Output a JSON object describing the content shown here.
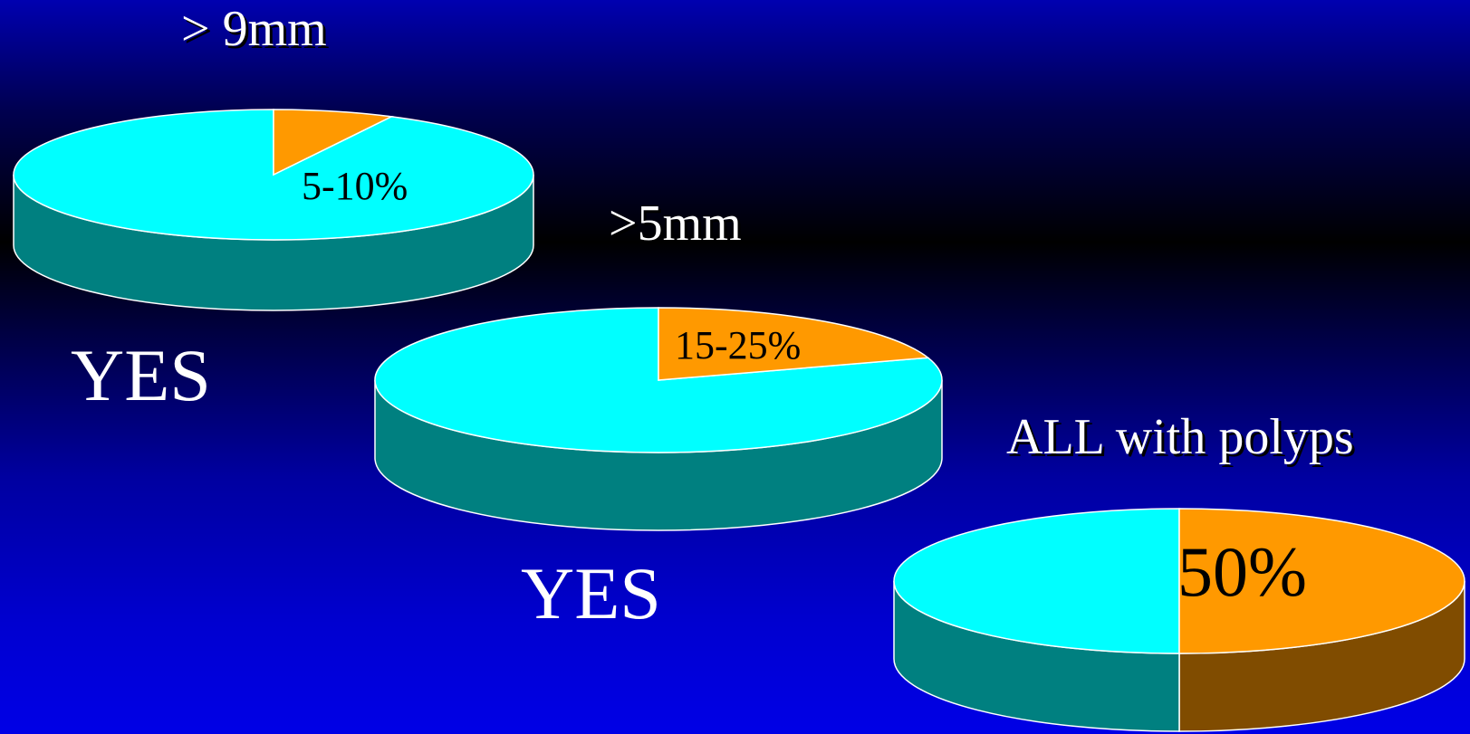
{
  "colors": {
    "background_top": "#0000b0",
    "background_bottom": "#0000e6",
    "slice_main": "#00ffff",
    "slice_main_side": "#008080",
    "slice_highlight": "#ff9900",
    "slice_highlight_side": "#804c00",
    "outline": "#ffffff",
    "text": "#ffffff"
  },
  "chart_data": [
    {
      "type": "pie",
      "title": "> 9mm",
      "slice_label": "5-10%",
      "values": [
        7.5,
        92.5
      ],
      "highlight_index": 0,
      "caption": "YES"
    },
    {
      "type": "pie",
      "title": ">5mm",
      "slice_label": "15-25%",
      "values": [
        20,
        80
      ],
      "highlight_index": 0,
      "caption": "YES"
    },
    {
      "type": "pie",
      "title": "ALL with polyps",
      "slice_label": "50%",
      "values": [
        50,
        50
      ],
      "highlight_index": 0,
      "caption": ""
    }
  ]
}
